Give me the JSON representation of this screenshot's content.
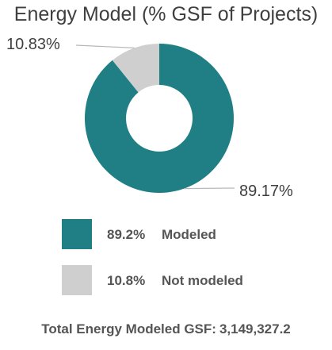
{
  "chart_data": {
    "type": "pie",
    "title": "Energy Model (% GSF of Projects)",
    "slices": [
      {
        "name": "Modeled",
        "value": 89.17,
        "color": "#1f7f84",
        "data_label": "89.17%",
        "legend_value": "89.2%"
      },
      {
        "name": "Not modeled",
        "value": 10.83,
        "color": "#cfcfcf",
        "data_label": "10.83%",
        "legend_value": "10.8%"
      }
    ],
    "legend_position": "bottom"
  },
  "footer": {
    "label": "Total Energy Modeled GSF:",
    "value": "3,149,327.2"
  }
}
